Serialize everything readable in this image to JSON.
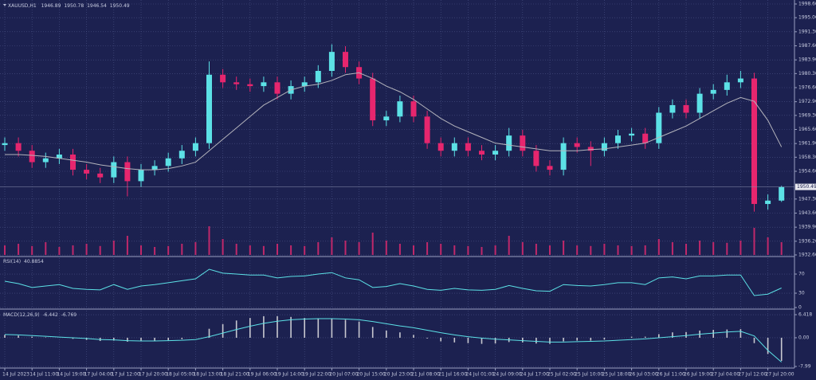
{
  "chart_data": [
    {
      "type": "candlestick",
      "title": "XAUUSD,H1",
      "categories": [
        "14 Jul 2023",
        null,
        "14 Jul 11:00",
        null,
        "14 Jul 19:00",
        null,
        "17 Jul 04:00",
        null,
        "17 Jul 12:00",
        null,
        "17 Jul 20:00",
        null,
        "18 Jul 05:00",
        null,
        "18 Jul 13:00",
        null,
        "18 Jul 21:00",
        null,
        "19 Jul 06:00",
        null,
        "19 Jul 14:00",
        null,
        "19 Jul 22:00",
        null,
        "20 Jul 07:00",
        null,
        "20 Jul 15:00",
        null,
        "20 Jul 23:00",
        null,
        "21 Jul 08:00",
        null,
        "21 Jul 16:00",
        null,
        "24 Jul 01:00",
        null,
        "24 Jul 09:00",
        null,
        "24 Jul 17:00",
        null,
        "25 Jul 02:00",
        null,
        "25 Jul 10:00",
        null,
        "25 Jul 18:00",
        null,
        "26 Jul 03:00",
        null,
        "26 Jul 11:00",
        null,
        "26 Jul 19:00",
        null,
        "27 Jul 04:00",
        null,
        "27 Jul 12:00",
        null,
        "27 Jul 20:00",
        null
      ],
      "open": [
        1961.5,
        1962,
        1960,
        1957,
        1958,
        1959,
        1955,
        1954,
        1953,
        1957,
        1952,
        1955,
        1956,
        1958,
        1960,
        1962,
        1980,
        1978,
        1977.5,
        1977,
        1978,
        1975,
        1977,
        1978,
        1981,
        1986,
        1982,
        1979,
        1968,
        1969,
        1973,
        1969,
        1962,
        1960,
        1962,
        1960,
        1959,
        1960,
        1964,
        1960,
        1956,
        1955,
        1962,
        1961,
        1960,
        1962,
        1964,
        1964.5,
        1962,
        1970,
        1972,
        1970,
        1975,
        1976,
        1978,
        1979,
        1946,
        1946.89
      ],
      "high": [
        1963.5,
        1963.5,
        1961.5,
        1959.5,
        1960.5,
        1960.5,
        1956.5,
        1955.5,
        1958.5,
        1958.5,
        1956.5,
        1957.5,
        1959.5,
        1961.5,
        1963.5,
        1983.5,
        1981.5,
        1979.5,
        1979,
        1979.5,
        1979.5,
        1978.5,
        1979.5,
        1982.5,
        1988,
        1987.5,
        1983.5,
        1980.5,
        1970.5,
        1974.5,
        1974.5,
        1970.5,
        1963.5,
        1963.5,
        1963.5,
        1961.5,
        1961.5,
        1966,
        1965.5,
        1961.5,
        1957.5,
        1963.5,
        1963.5,
        1962.5,
        1963.5,
        1965.5,
        1966,
        1966,
        1971.5,
        1973.5,
        1973.5,
        1976.5,
        1977.5,
        1980,
        1981,
        1980.5,
        1948.5,
        1950.78
      ],
      "low": [
        1960,
        1958.5,
        1955.5,
        1955.5,
        1956.5,
        1953.5,
        1952.5,
        1951.5,
        1951.5,
        1948,
        1950.5,
        1953.5,
        1954.5,
        1956.5,
        1958.5,
        1960.5,
        1976.5,
        1976,
        1975.5,
        1975.5,
        1973.5,
        1973.5,
        1975.5,
        1976.5,
        1979.5,
        1980.5,
        1977.5,
        1966.5,
        1966.5,
        1967.5,
        1967.5,
        1960.5,
        1958.5,
        1958.5,
        1958.5,
        1957.5,
        1957.5,
        1958.5,
        1958.5,
        1954.5,
        1953.5,
        1953.5,
        1959.5,
        1956,
        1958.5,
        1960.5,
        1962.5,
        1960.5,
        1960.5,
        1968.5,
        1968.5,
        1968.5,
        1973.5,
        1974.5,
        1976.5,
        1944,
        1944.5,
        1946.54
      ],
      "close": [
        1962,
        1960,
        1957,
        1958,
        1959,
        1955,
        1954,
        1953,
        1957,
        1952,
        1955,
        1956,
        1958,
        1960,
        1962,
        1980,
        1978,
        1977.5,
        1977,
        1978,
        1975,
        1977,
        1978,
        1981,
        1986,
        1982,
        1979,
        1968,
        1969,
        1973,
        1969,
        1962,
        1960,
        1962,
        1960,
        1959,
        1960,
        1964,
        1960,
        1956,
        1955,
        1962,
        1961,
        1960,
        1962,
        1964,
        1964.5,
        1962,
        1970,
        1972,
        1970,
        1975,
        1976,
        1978,
        1979,
        1946,
        1946.89,
        1950.49
      ],
      "up_color": "#5ce1e6",
      "down_color": "#e6266e",
      "ma": {
        "color": "#b4b4bc",
        "values": [
          1959,
          1959,
          1958.8,
          1958.5,
          1958,
          1957.5,
          1957,
          1956.3,
          1955.8,
          1955.3,
          1955,
          1955,
          1955.3,
          1956,
          1957,
          1960,
          1963,
          1966,
          1969,
          1972,
          1974,
          1976,
          1977,
          1977.5,
          1978.5,
          1980,
          1980.5,
          1979,
          1977,
          1975.5,
          1973.5,
          1971,
          1968.5,
          1966.5,
          1965,
          1963.5,
          1962,
          1961.5,
          1961,
          1960.5,
          1960,
          1960,
          1960,
          1960.3,
          1960.5,
          1961,
          1961.5,
          1962,
          1963.5,
          1965,
          1966.5,
          1968.5,
          1970.5,
          1972.5,
          1974,
          1973,
          1968,
          1961
        ]
      },
      "volume": {
        "color": "#c0286a",
        "ylim": [
          0,
          100
        ],
        "values": [
          30,
          35,
          28,
          40,
          25,
          30,
          35,
          28,
          45,
          60,
          30,
          25,
          28,
          35,
          40,
          90,
          50,
          35,
          30,
          28,
          35,
          30,
          28,
          40,
          55,
          45,
          40,
          70,
          45,
          35,
          30,
          40,
          35,
          30,
          28,
          25,
          30,
          60,
          40,
          35,
          30,
          45,
          30,
          28,
          35,
          30,
          28,
          30,
          50,
          40,
          35,
          45,
          40,
          38,
          45,
          85,
          55,
          40
        ]
      },
      "ylim": [
        1932.6,
        1998.6
      ],
      "yticks": [
        {
          "value": 1998.6,
          "label": "1998.60"
        },
        {
          "value": 1995,
          "label": "1995.00"
        },
        {
          "value": 1991.3,
          "label": "1991.30"
        },
        {
          "value": 1987.6,
          "label": "1987.60"
        },
        {
          "value": 1983.9,
          "label": "1983.90"
        },
        {
          "value": 1980.3,
          "label": "1980.30"
        },
        {
          "value": 1976.6,
          "label": "1976.60"
        },
        {
          "value": 1972.9,
          "label": "1972.90"
        },
        {
          "value": 1969.3,
          "label": "1969.30"
        },
        {
          "value": 1965.6,
          "label": "1965.60"
        },
        {
          "value": 1961.9,
          "label": "1961.90"
        },
        {
          "value": 1958.3,
          "label": "1958.30"
        },
        {
          "value": 1954.6,
          "label": "1954.60"
        },
        {
          "value": 1947.3,
          "label": "1947.30"
        },
        {
          "value": 1943.6,
          "label": "1943.60"
        },
        {
          "value": 1939.9,
          "label": "1939.90"
        },
        {
          "value": 1936.2,
          "label": "1936.20"
        },
        {
          "value": 1932.6,
          "label": "1932.60"
        }
      ],
      "grid": true
    },
    {
      "type": "line",
      "title": "RSI(14)",
      "color": "#5ce1e6",
      "values": [
        55,
        50,
        42,
        45,
        48,
        40,
        38,
        37,
        48,
        38,
        45,
        48,
        52,
        56,
        60,
        80,
        72,
        70,
        68,
        68,
        62,
        65,
        66,
        70,
        73,
        62,
        58,
        42,
        44,
        50,
        45,
        38,
        36,
        40,
        37,
        36,
        38,
        46,
        40,
        35,
        34,
        48,
        46,
        45,
        48,
        52,
        52,
        48,
        62,
        64,
        60,
        66,
        66,
        68,
        68,
        25,
        28,
        40.8854
      ],
      "ylim": [
        -3.3,
        106.7
      ],
      "yticks": [
        0,
        30,
        70
      ]
    },
    {
      "type": "macd",
      "title": "MACD(12,26,9)",
      "series": [
        {
          "color": "#c8c8d0",
          "values": [
            0.8,
            0.6,
            0.3,
            0.1,
            0,
            -0.3,
            -0.6,
            -0.9,
            -0.8,
            -1.1,
            -1,
            -0.9,
            -0.7,
            -0.4,
            0,
            2.5,
            3.8,
            4.8,
            5.5,
            6,
            6,
            5.8,
            5.5,
            5.3,
            5.3,
            5,
            4.5,
            3,
            2,
            1.5,
            0.8,
            -0.2,
            -1,
            -1.3,
            -1.5,
            -1.7,
            -1.6,
            -1.2,
            -1.3,
            -1.6,
            -1.7,
            -1,
            -0.8,
            -0.8,
            -0.5,
            0,
            0.3,
            0.3,
            1,
            1.5,
            1.6,
            2,
            2.2,
            2.3,
            2.4,
            -1.5,
            -4.5,
            -6.442
          ]
        },
        {
          "color": "#5ce1e6",
          "values": [
            0.9,
            0.8,
            0.6,
            0.4,
            0.2,
            0,
            -0.2,
            -0.5,
            -0.6,
            -0.8,
            -0.9,
            -0.9,
            -0.8,
            -0.7,
            -0.5,
            0.3,
            1.3,
            2.3,
            3.2,
            4,
            4.6,
            5,
            5.2,
            5.3,
            5.3,
            5.2,
            5,
            4.5,
            3.9,
            3.3,
            2.8,
            2.1,
            1.4,
            0.8,
            0.3,
            -0.1,
            -0.4,
            -0.6,
            -0.8,
            -1,
            -1.2,
            -1.2,
            -1.1,
            -1,
            -0.9,
            -0.7,
            -0.5,
            -0.3,
            0,
            0.3,
            0.6,
            1,
            1.3,
            1.6,
            1.8,
            0.5,
            -3.5,
            -6.769
          ]
        }
      ],
      "ylim": [
        -8.43,
        7.53
      ],
      "yticks": [
        6.418,
        {
          "value": 0,
          "label": "0.00"
        },
        -7.99
      ]
    }
  ]
}
